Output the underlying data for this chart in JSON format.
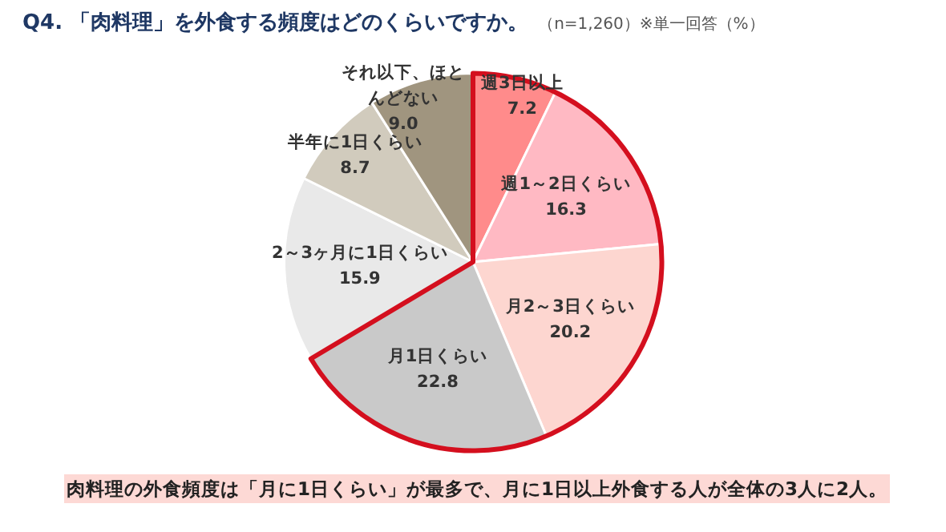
{
  "chart_data": {
    "type": "pie",
    "title": "Q4. 「肉料理」を外食する頻度はどのくらいですか。",
    "subtitle": "（n=1,260）※単一回答（%）",
    "categories": [
      "週3日以上",
      "週1～2日くらい",
      "月2～3日くらい",
      "月1日くらい",
      "2～3ヶ月に1日くらい",
      "半年に1日くらい",
      "それ以下、ほとんどない"
    ],
    "values": [
      7.2,
      16.3,
      20.2,
      22.8,
      15.9,
      8.7,
      9.0
    ],
    "colors": [
      "#ff8b8b",
      "#ffb9c3",
      "#fdd6d0",
      "#c9c9c9",
      "#e9e9e9",
      "#d1cbbd",
      "#a0957f"
    ],
    "value_labels": [
      "7.2",
      "16.3",
      "20.2",
      "22.8",
      "15.9",
      "8.7",
      "9.0"
    ],
    "annotations": [
      "肉料理の外食頻度は「月に1日くらい」が最多で、月に1日以上外食する人が全体の3人に2人。"
    ]
  }
}
